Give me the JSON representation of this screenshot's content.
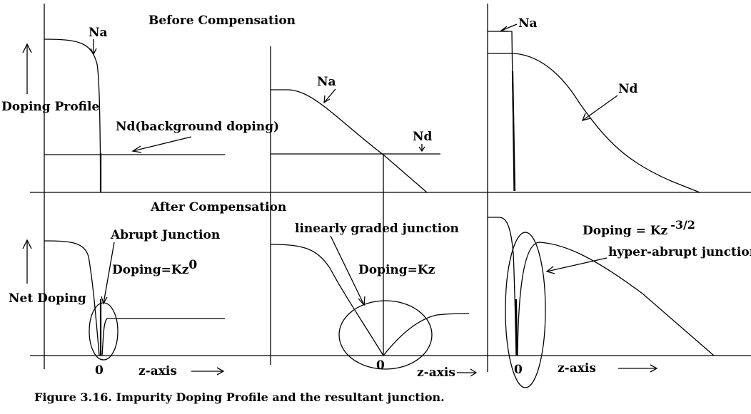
{
  "titles": {
    "before": "Before Compensation",
    "after": "After Compensation"
  },
  "axis_labels": {
    "doping_profile": "Doping Profile",
    "net_doping": "Net Doping",
    "zaxis_1": "z-axis",
    "zaxis_2": "z-axis",
    "zaxis_3": "z-axis",
    "zero_1": "0",
    "zero_2": "0",
    "zero_3": "0"
  },
  "panel1": {
    "na": "Na",
    "nd": "Nd(background doping)",
    "junction": "Abrupt Junction",
    "doping_base": "Doping=Kz",
    "doping_exp": "0"
  },
  "panel2": {
    "na": "Na",
    "nd": "Nd",
    "junction": "linearly graded junction",
    "doping": "Doping=Kz"
  },
  "panel3": {
    "na": "Na",
    "nd": "Nd",
    "junction": "hyper-abrupt junction",
    "doping_base": "Doping = Kz",
    "doping_exp": "-3/2"
  },
  "caption": "Figure 3.16. Impurity Doping Profile and the resultant junction."
}
